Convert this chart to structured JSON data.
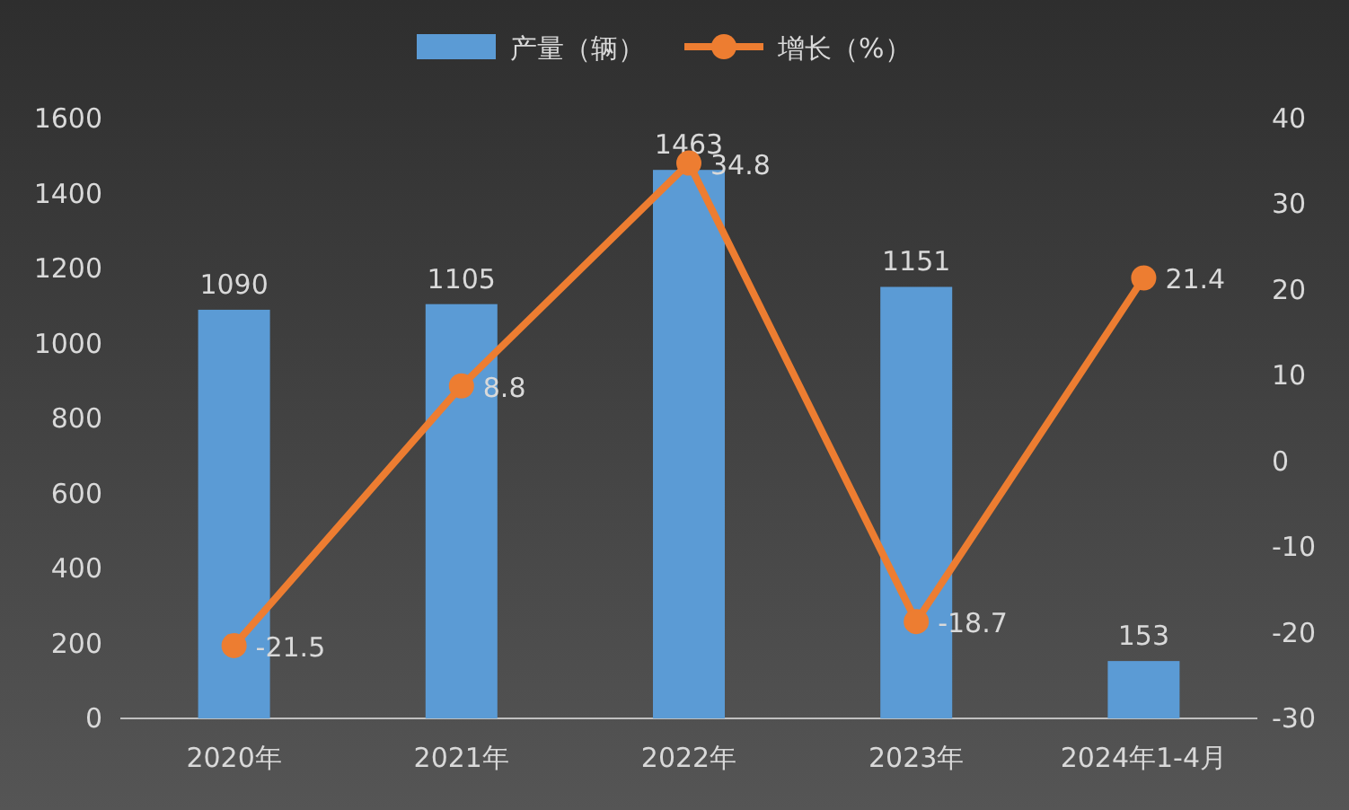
{
  "chart_data": {
    "type": "bar",
    "categories": [
      "2020年",
      "2021年",
      "2022年",
      "2023年",
      "2024年1-4月"
    ],
    "series": [
      {
        "name": "产量（辆）",
        "color": "#5b9bd5",
        "values": [
          1090,
          1105,
          1463,
          1151,
          153
        ]
      },
      {
        "name": "增长（%）",
        "type": "line",
        "axis": "y2",
        "color": "#ed7d31",
        "values": [
          -21.5,
          8.8,
          34.8,
          -18.7,
          21.4
        ]
      }
    ],
    "ylim": [
      0,
      1600
    ],
    "yticks": [
      0,
      200,
      400,
      600,
      800,
      1000,
      1200,
      1400,
      1600
    ],
    "y2lim": [
      -30,
      40
    ],
    "y2ticks": [
      -30,
      -20,
      -10,
      0,
      10,
      20,
      30,
      40
    ],
    "data_labels": true,
    "legend": "top",
    "marker": "circle",
    "grid": false
  }
}
